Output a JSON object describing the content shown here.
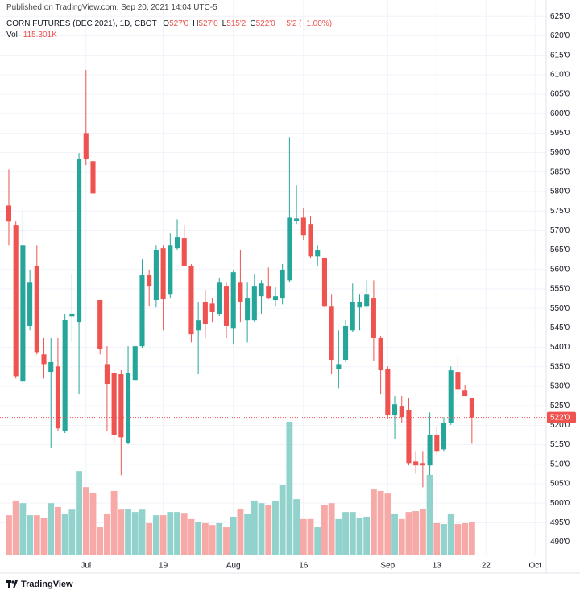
{
  "published": "Published on TradingView.com, Sep 20, 2021 14:04 UTC-5",
  "legend": {
    "symbol": "CORN FUTURES (DEC 2021), 1D, CBOT",
    "ohlc": [
      {
        "key": "O",
        "value": "527'0"
      },
      {
        "key": "H",
        "value": "527'0"
      },
      {
        "key": "L",
        "value": "515'2"
      },
      {
        "key": "C",
        "value": "522'0"
      }
    ],
    "change": "−5'2 (−1.00%)",
    "vol_key": "Vol",
    "vol_value": "115.301K"
  },
  "footer": "TradingView",
  "chart_data": {
    "type": "candlestick",
    "up_color": "#26a69a",
    "down_color": "#ef5350",
    "up_volume_color": "#92d2cc",
    "down_volume_color": "#f7a9a7",
    "grid": true,
    "open": [
      576.4,
      571.3,
      531.4,
      545.5,
      561,
      538.2,
      533.7,
      535.1,
      518.6,
      547.9,
      546.5,
      595,
      587.8,
      552.1,
      535.7,
      533.5,
      533.1,
      515.5,
      531.6,
      540.3,
      558.5,
      552.1,
      565.5,
      553.7,
      565.5,
      568,
      561,
      544.4,
      551.7,
      551.2,
      548.6,
      555.8,
      544.8,
      556.8,
      546.9,
      546.9,
      553.1,
      555.8,
      552.1,
      552.7,
      557.2,
      572.5,
      573.3,
      571.7,
      563.4,
      563,
      550.6,
      534.5,
      536.8,
      544.4,
      550.2,
      550.6,
      552.7,
      542.4,
      534.5,
      522.7,
      524.8,
      523.8,
      510.7,
      510.3,
      509.7,
      517.6,
      513.8,
      520.7,
      533.7,
      528.9,
      527
    ],
    "high": [
      585.7,
      572.3,
      575,
      559.9,
      566.1,
      542.4,
      542.4,
      542.4,
      548.6,
      558.9,
      589.9,
      611.2,
      597.5,
      552.1,
      540.3,
      534.1,
      534.1,
      540.3,
      540.3,
      562.6,
      559.9,
      566.1,
      566.1,
      569.2,
      572.9,
      571.3,
      561.4,
      551.7,
      554.8,
      552.7,
      557.9,
      556.8,
      559.9,
      565.1,
      556.8,
      558.9,
      557.2,
      560.5,
      555.6,
      561.4,
      594,
      581.6,
      575.8,
      573.8,
      566.1,
      563,
      553.7,
      544.4,
      546.9,
      556.4,
      553.7,
      557.2,
      557.2,
      542.8,
      535.1,
      527.5,
      527.5,
      527.1,
      513.4,
      513.4,
      523.3,
      519.6,
      522.1,
      535.1,
      537.8,
      530.4,
      527
    ],
    "low": [
      566.1,
      532,
      530.4,
      544.4,
      538.2,
      532,
      514.3,
      518.6,
      518,
      541.3,
      527.9,
      586.8,
      573.3,
      538.2,
      518.6,
      515.5,
      507.2,
      515.1,
      531.6,
      539.9,
      550.6,
      550.2,
      544.4,
      552.7,
      565.1,
      561,
      541.3,
      533.1,
      542.4,
      546.5,
      548.1,
      542.4,
      540.7,
      546.5,
      541.3,
      546.5,
      548.6,
      552.3,
      550.6,
      551,
      556.8,
      571.7,
      567.6,
      563,
      561,
      550.2,
      533.1,
      529.5,
      536.2,
      544,
      544.4,
      550.2,
      536.6,
      527.9,
      521.7,
      516.5,
      520.7,
      509.7,
      507.6,
      504.1,
      507.2,
      512.4,
      513.4,
      520.1,
      527.9,
      527.5,
      515.25
    ],
    "close": [
      572.3,
      532.6,
      566.1,
      556.8,
      538.8,
      535.7,
      536.2,
      519.2,
      547.1,
      548.6,
      588.4,
      588.4,
      579.5,
      539.7,
      530.6,
      517.6,
      516.9,
      533.5,
      540.3,
      558.5,
      555.8,
      565.1,
      552.3,
      566.1,
      568.2,
      561,
      543.4,
      546.9,
      545.9,
      549,
      556.8,
      545.5,
      559.3,
      551.7,
      552.7,
      555.8,
      556.4,
      552.7,
      553.1,
      559.9,
      573.3,
      573.1,
      568.8,
      563.4,
      564.9,
      550.6,
      536.8,
      535.7,
      545.5,
      551.7,
      551.7,
      553.7,
      542.4,
      534.1,
      522.7,
      525.4,
      522.1,
      510.3,
      509.7,
      509.7,
      517.6,
      513.4,
      520.7,
      534.1,
      529.3,
      527.5,
      522
    ],
    "volume": [
      137000,
      187000,
      178000,
      137000,
      137000,
      129000,
      178000,
      165000,
      143000,
      156000,
      288000,
      233000,
      214000,
      96000,
      143000,
      220000,
      156000,
      159000,
      148000,
      156000,
      110000,
      137000,
      137000,
      148000,
      148000,
      145000,
      124000,
      115000,
      110000,
      104000,
      110000,
      96000,
      132000,
      159000,
      143000,
      187000,
      178000,
      173000,
      187000,
      239000,
      456000,
      192000,
      124000,
      124000,
      96000,
      173000,
      178000,
      124000,
      148000,
      148000,
      129000,
      132000,
      225000,
      220000,
      211000,
      143000,
      124000,
      148000,
      151000,
      159000,
      275000,
      110000,
      107000,
      143000,
      107000,
      110000,
      115301
    ],
    "last_price_label": "522'0",
    "xlim": [
      -1.26,
      76.58
    ],
    "xticks": [
      {
        "value": 11,
        "label": "Jul"
      },
      {
        "value": 22,
        "label": "19"
      },
      {
        "value": 32,
        "label": "Aug"
      },
      {
        "value": 42,
        "label": "16"
      },
      {
        "value": 54,
        "label": "Sep"
      },
      {
        "value": 61,
        "label": "13"
      },
      {
        "value": 68,
        "label": "22"
      },
      {
        "value": 75,
        "label": "Oct"
      }
    ],
    "ylim": [
      486.6,
      626.7
    ],
    "yticks": [
      {
        "value": 625,
        "label": "625'0"
      },
      {
        "value": 620,
        "label": "620'0"
      },
      {
        "value": 615,
        "label": "615'0"
      },
      {
        "value": 610,
        "label": "610'0"
      },
      {
        "value": 605,
        "label": "605'0"
      },
      {
        "value": 600,
        "label": "600'0"
      },
      {
        "value": 595,
        "label": "595'0"
      },
      {
        "value": 590,
        "label": "590'0"
      },
      {
        "value": 585,
        "label": "585'0"
      },
      {
        "value": 580,
        "label": "580'0"
      },
      {
        "value": 575,
        "label": "575'0"
      },
      {
        "value": 570,
        "label": "570'0"
      },
      {
        "value": 565,
        "label": "565'0"
      },
      {
        "value": 560,
        "label": "560'0"
      },
      {
        "value": 555,
        "label": "555'0"
      },
      {
        "value": 550,
        "label": "550'0"
      },
      {
        "value": 545,
        "label": "545'0"
      },
      {
        "value": 540,
        "label": "540'0"
      },
      {
        "value": 535,
        "label": "535'0"
      },
      {
        "value": 530,
        "label": "530'0"
      },
      {
        "value": 525,
        "label": "525'0"
      },
      {
        "value": 520,
        "label": "520'0"
      },
      {
        "value": 515,
        "label": "515'0"
      },
      {
        "value": 510,
        "label": "510'0"
      },
      {
        "value": 505,
        "label": "505'0"
      },
      {
        "value": 500,
        "label": "500'0"
      },
      {
        "value": 495,
        "label": "495'0"
      },
      {
        "value": 490,
        "label": "490'0"
      }
    ]
  }
}
